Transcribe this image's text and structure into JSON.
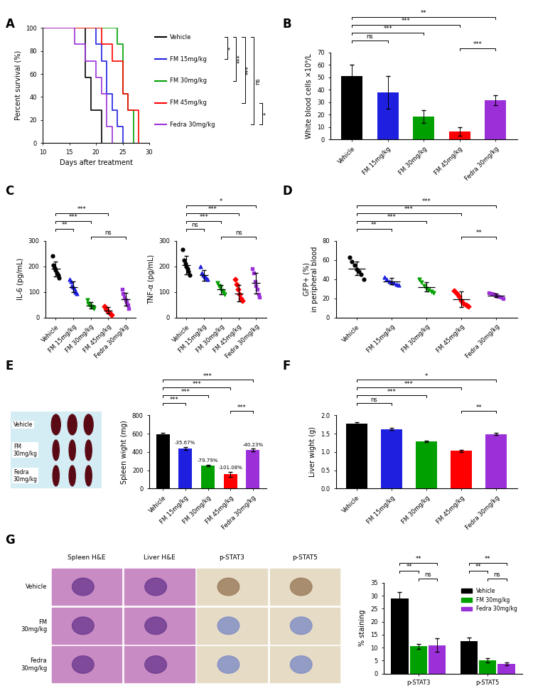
{
  "chart_data": [
    {
      "type": "line",
      "panel": "A",
      "line_style": "steps",
      "x_label": "Days after treatment",
      "y_label": "Percent survival (%)",
      "xlim": [
        10,
        30
      ],
      "xticks": [
        10,
        15,
        20,
        25,
        30
      ],
      "ylim": [
        0,
        100
      ],
      "yticks": [
        0,
        20,
        40,
        60,
        80,
        100
      ],
      "series": [
        {
          "name": "Vehicle",
          "color": "#000000",
          "x": [
            10,
            18,
            19,
            21
          ],
          "values": [
            100,
            57.1,
            28.6,
            0
          ]
        },
        {
          "name": "FM 15mg/kg",
          "color": "#1f1fe0",
          "x": [
            10,
            20,
            21,
            22,
            23,
            24,
            25
          ],
          "values": [
            100,
            85.7,
            71.4,
            42.9,
            28.6,
            14.3,
            0
          ]
        },
        {
          "name": "FM 30mg/kg",
          "color": "#00a000",
          "x": [
            10,
            24,
            25,
            26,
            27
          ],
          "values": [
            100,
            85.7,
            42.9,
            28.6,
            0
          ]
        },
        {
          "name": "FM 45mg/kg",
          "color": "#ff0000",
          "x": [
            10,
            21,
            23,
            25,
            26,
            28
          ],
          "values": [
            100,
            85.7,
            71.4,
            42.9,
            28.6,
            0
          ]
        },
        {
          "name": "Fedra 30mg/kg",
          "color": "#9b30d9",
          "x": [
            10,
            16,
            18,
            20,
            21,
            22,
            23
          ],
          "values": [
            100,
            85.7,
            71.4,
            57.1,
            42.9,
            14.3,
            0
          ]
        }
      ],
      "comparisons": [
        {
          "between": [
            "Vehicle",
            "FM 15mg/kg"
          ],
          "label": "*"
        },
        {
          "between": [
            "Vehicle",
            "FM 30mg/kg"
          ],
          "label": "***"
        },
        {
          "between": [
            "Vehicle",
            "FM 45mg/kg"
          ],
          "label": "***"
        },
        {
          "between": [
            "Vehicle",
            "Fedra 30mg/kg"
          ],
          "label": "ns"
        },
        {
          "between": [
            "FM 45mg/kg",
            "Fedra 30mg/kg"
          ],
          "label": "*"
        }
      ]
    },
    {
      "type": "bar",
      "panel": "B",
      "y_label": "White blood cells ×10⁹/L",
      "categories": [
        "Vehicle",
        "FM 15mg/kg",
        "FM 30mg/kg",
        "FM 45mg/kg",
        "Fedra 30mg/kg"
      ],
      "values": [
        51,
        38,
        18.5,
        6.5,
        31.5
      ],
      "errors": [
        9,
        13,
        5,
        3.5,
        4
      ],
      "colors": [
        "#000000",
        "#1f1fe0",
        "#00a000",
        "#ff0000",
        "#9b30d9"
      ],
      "ylim": [
        0,
        70
      ],
      "yticks": [
        0,
        10,
        20,
        30,
        40,
        50,
        60,
        70
      ],
      "comparisons": [
        {
          "between": [
            "FM 45mg/kg",
            "Fedra 30mg/kg"
          ],
          "label": "***"
        },
        {
          "between": [
            "Vehicle",
            "FM 15mg/kg"
          ],
          "label": "ns"
        },
        {
          "between": [
            "Vehicle",
            "FM 30mg/kg"
          ],
          "label": "***"
        },
        {
          "between": [
            "Vehicle",
            "FM 45mg/kg"
          ],
          "label": "***"
        },
        {
          "between": [
            "Vehicle",
            "Fedra 30mg/kg"
          ],
          "label": "**"
        }
      ]
    },
    {
      "type": "dot",
      "panel": "C",
      "y_label": "IL-6 (pg/mL)",
      "categories": [
        "Vehicle",
        "FM 15mg/kg",
        "FM 30mg/kg",
        "FM 45mg/kg",
        "Fedra 30mg/kg"
      ],
      "points": [
        [
          240,
          205,
          195,
          185,
          175,
          165,
          155
        ],
        [
          150,
          140,
          125,
          120,
          110,
          100,
          95
        ],
        [
          70,
          55,
          50,
          45,
          42,
          40,
          35
        ],
        [
          45,
          35,
          30,
          25,
          20,
          15,
          10
        ],
        [
          110,
          95,
          80,
          70,
          60,
          50,
          35
        ]
      ],
      "means": [
        190,
        120,
        48,
        28,
        71
      ],
      "errors": [
        30,
        20,
        12,
        12,
        25
      ],
      "colors": [
        "#000000",
        "#1f1fe0",
        "#00a000",
        "#ff0000",
        "#9b30d9"
      ],
      "ylim": [
        0,
        300
      ],
      "yticks": [
        0,
        100,
        200,
        300
      ],
      "comparisons": [
        {
          "between": [
            "FM 30mg/kg",
            "Fedra 30mg/kg"
          ],
          "label": "ns"
        },
        {
          "between": [
            "Vehicle",
            "FM 15mg/kg"
          ],
          "label": "**"
        },
        {
          "between": [
            "Vehicle",
            "FM 30mg/kg"
          ],
          "label": "***"
        },
        {
          "between": [
            "Vehicle",
            "FM 45mg/kg"
          ],
          "label": "***"
        }
      ]
    },
    {
      "type": "dot",
      "y_label": "TNF-α (pg/mL)",
      "categories": [
        "Vehicle",
        "FM 15mg/kg",
        "FM 30mg/kg",
        "FM 45mg/kg",
        "Fedra 30mg/kg"
      ],
      "points": [
        [
          265,
          225,
          210,
          200,
          190,
          180,
          165
        ],
        [
          200,
          175,
          165,
          160,
          155,
          150
        ],
        [
          135,
          125,
          115,
          105,
          100,
          90
        ],
        [
          150,
          130,
          110,
          90,
          75,
          65
        ],
        [
          190,
          175,
          140,
          125,
          110,
          90,
          80
        ]
      ],
      "means": [
        205,
        165,
        110,
        95,
        135
      ],
      "errors": [
        35,
        20,
        18,
        32,
        40
      ],
      "colors": [
        "#000000",
        "#1f1fe0",
        "#00a000",
        "#ff0000",
        "#9b30d9"
      ],
      "ylim": [
        0,
        300
      ],
      "yticks": [
        0,
        100,
        200,
        300
      ],
      "comparisons": [
        {
          "between": [
            "FM 30mg/kg",
            "Fedra 30mg/kg"
          ],
          "label": "ns"
        },
        {
          "between": [
            "Vehicle",
            "FM 15mg/kg"
          ],
          "label": "ns"
        },
        {
          "between": [
            "Vehicle",
            "FM 30mg/kg"
          ],
          "label": "***"
        },
        {
          "between": [
            "Vehicle",
            "FM 45mg/kg"
          ],
          "label": "***"
        },
        {
          "between": [
            "Vehicle",
            "Fedra 30mg/kg"
          ],
          "label": "*"
        }
      ]
    },
    {
      "type": "dot",
      "panel": "D",
      "y_label": "GFP+ (%)\nin peripheral blood",
      "categories": [
        "Vehicle",
        "FM 15mg/kg",
        "FM 30mg/kg",
        "FM 45mg/kg",
        "Fedra 30mg/kg"
      ],
      "points": [
        [
          63,
          58,
          55,
          50,
          48,
          45,
          40
        ],
        [
          42,
          40,
          38,
          37,
          36,
          35,
          34
        ],
        [
          40,
          37,
          33,
          30,
          29,
          27,
          26
        ],
        [
          28,
          25,
          22,
          18,
          15,
          13,
          12
        ],
        [
          26,
          25,
          24,
          23,
          22,
          21,
          20
        ]
      ],
      "means": [
        51,
        38,
        32,
        19,
        23
      ],
      "errors": [
        7,
        3,
        5,
        8,
        2
      ],
      "colors": [
        "#000000",
        "#1f1fe0",
        "#00a000",
        "#ff0000",
        "#9b30d9"
      ],
      "ylim": [
        0,
        80
      ],
      "yticks": [
        0,
        20,
        40,
        60,
        80
      ],
      "comparisons": [
        {
          "between": [
            "FM 45mg/kg",
            "Fedra 30mg/kg"
          ],
          "label": "**"
        },
        {
          "between": [
            "Vehicle",
            "FM 15mg/kg"
          ],
          "label": "**"
        },
        {
          "between": [
            "Vehicle",
            "FM 30mg/kg"
          ],
          "label": "***"
        },
        {
          "between": [
            "Vehicle",
            "FM 45mg/kg"
          ],
          "label": "***"
        },
        {
          "between": [
            "Vehicle",
            "Fedra 30mg/kg"
          ],
          "label": "***"
        }
      ]
    },
    {
      "type": "image",
      "panel": "E",
      "row_labels": [
        "Vehicle",
        "FM\n30mg/kg",
        "Fedra\n30mg/kg"
      ]
    },
    {
      "type": "bar",
      "y_label": "Spleen wight (mg)",
      "categories": [
        "Vehicle",
        "FM 15mg/kg",
        "FM 30mg/kg",
        "FM 45mg/kg",
        "Fedra 30mg/kg"
      ],
      "values": [
        595,
        440,
        250,
        155,
        420
      ],
      "errors": [
        12,
        15,
        8,
        25,
        15
      ],
      "change_labels": [
        null,
        "-35.67%",
        "-79.79%",
        "-101.08%",
        "-40.23%"
      ],
      "colors": [
        "#000000",
        "#1f1fe0",
        "#00a000",
        "#ff0000",
        "#9b30d9"
      ],
      "ylim": [
        0,
        800
      ],
      "yticks": [
        0,
        200,
        400,
        600,
        800
      ],
      "comparisons": [
        {
          "between": [
            "FM 45mg/kg",
            "Fedra 30mg/kg"
          ],
          "label": "***"
        },
        {
          "between": [
            "Vehicle",
            "FM 15mg/kg"
          ],
          "label": "***"
        },
        {
          "between": [
            "Vehicle",
            "FM 30mg/kg"
          ],
          "label": "***"
        },
        {
          "between": [
            "Vehicle",
            "FM 45mg/kg"
          ],
          "label": "***"
        },
        {
          "between": [
            "Vehicle",
            "Fedra 30mg/kg"
          ],
          "label": "***"
        }
      ]
    },
    {
      "type": "bar",
      "panel": "F",
      "y_label": "Liver wight (g)",
      "categories": [
        "Vehicle",
        "FM 15mg/kg",
        "FM 30mg/kg",
        "FM 45mg/kg",
        "Fedra 30mg/kg"
      ],
      "values": [
        1.77,
        1.62,
        1.29,
        1.03,
        1.49
      ],
      "errors": [
        0.05,
        0.03,
        0.02,
        0.03,
        0.03
      ],
      "colors": [
        "#000000",
        "#1f1fe0",
        "#00a000",
        "#ff0000",
        "#9b30d9"
      ],
      "ylim": [
        0.0,
        2.0
      ],
      "yticks": [
        0.0,
        0.5,
        1.0,
        1.5,
        2.0
      ],
      "comparisons": [
        {
          "between": [
            "FM 45mg/kg",
            "Fedra 30mg/kg"
          ],
          "label": "**"
        },
        {
          "between": [
            "Vehicle",
            "FM 15mg/kg"
          ],
          "label": "ns"
        },
        {
          "between": [
            "Vehicle",
            "FM 30mg/kg"
          ],
          "label": "***"
        },
        {
          "between": [
            "Vehicle",
            "FM 45mg/kg"
          ],
          "label": "***"
        },
        {
          "between": [
            "Vehicle",
            "Fedra 30mg/kg"
          ],
          "label": "*"
        }
      ]
    },
    {
      "type": "image_grid",
      "panel": "G",
      "row_labels": [
        "Vehicle",
        "FM\n30mg/kg",
        "Fedra\n30mg/kg"
      ],
      "column_labels": [
        "Spleen H&E",
        "Liver H&E",
        "p-STAT3",
        "p-STAT5"
      ]
    },
    {
      "type": "grouped_bar",
      "y_label": "% staining",
      "legend": "upper right",
      "categories": [
        "p-STAT3",
        "p-STAT5"
      ],
      "series": [
        {
          "name": "Vehicle",
          "color": "#000000",
          "values": [
            29,
            12.5
          ],
          "errors": [
            2.5,
            1.5
          ]
        },
        {
          "name": "FM 30mg/kg",
          "color": "#00a000",
          "values": [
            10.5,
            5
          ],
          "errors": [
            1,
            0.8
          ]
        },
        {
          "name": "Fedra 30mg/kg",
          "color": "#9b30d9",
          "values": [
            11,
            3.7
          ],
          "errors": [
            2.5,
            0.6
          ]
        }
      ],
      "ylim": [
        0,
        35
      ],
      "yticks": [
        0,
        5,
        10,
        15,
        20,
        25,
        30,
        35
      ],
      "comparisons": [
        {
          "group": "p-STAT3",
          "between": [
            "FM 30mg/kg",
            "Fedra 30mg/kg"
          ],
          "label": "ns"
        },
        {
          "group": "p-STAT3",
          "between": [
            "Vehicle",
            "FM 30mg/kg"
          ],
          "label": "**"
        },
        {
          "group": "p-STAT3",
          "between": [
            "Vehicle",
            "Fedra 30mg/kg"
          ],
          "label": "**"
        },
        {
          "group": "p-STAT5",
          "between": [
            "FM 30mg/kg",
            "Fedra 30mg/kg"
          ],
          "label": "ns"
        },
        {
          "group": "p-STAT5",
          "between": [
            "Vehicle",
            "FM 30mg/kg"
          ],
          "label": "**"
        },
        {
          "group": "p-STAT5",
          "between": [
            "Vehicle",
            "Fedra 30mg/kg"
          ],
          "label": "**"
        }
      ]
    }
  ]
}
